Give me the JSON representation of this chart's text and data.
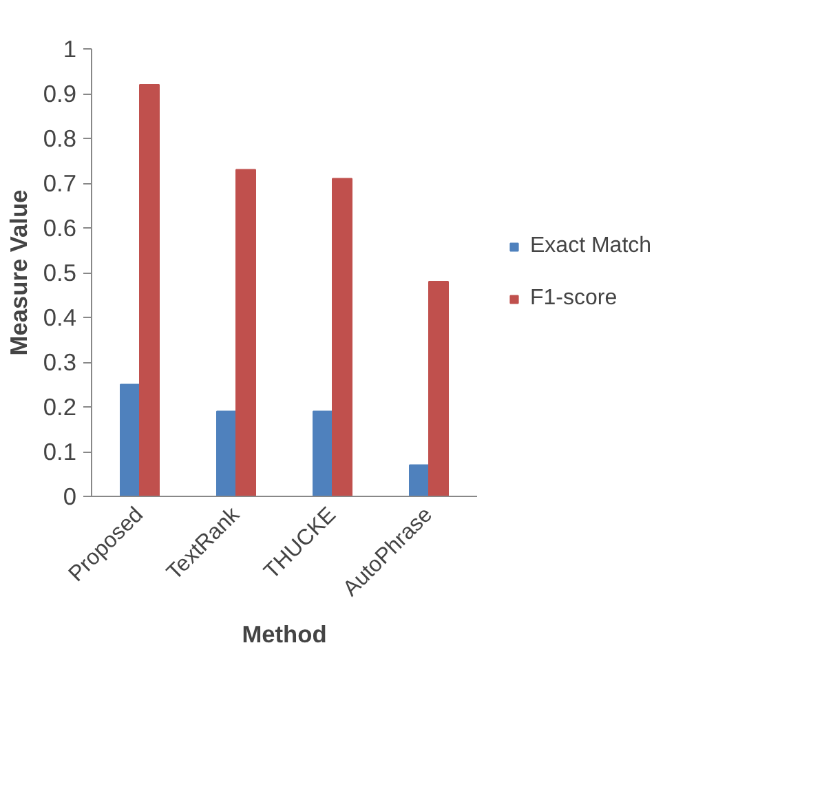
{
  "chart_data": {
    "type": "bar",
    "xlabel": "Method",
    "ylabel": "Measure Value",
    "categories": [
      "Proposed",
      "TextRank",
      "THUCKE",
      "AutoPhrase"
    ],
    "series": [
      {
        "name": "Exact Match",
        "color": "#4f81bd",
        "values": [
          0.25,
          0.19,
          0.19,
          0.07
        ]
      },
      {
        "name": "F1-score",
        "color": "#c0504d",
        "values": [
          0.92,
          0.73,
          0.71,
          0.48
        ]
      }
    ],
    "ylim": [
      0,
      1
    ],
    "yticks": [
      0,
      0.1,
      0.2,
      0.3,
      0.4,
      0.5,
      0.6,
      0.7,
      0.8,
      0.9,
      1
    ],
    "legend": "right"
  }
}
